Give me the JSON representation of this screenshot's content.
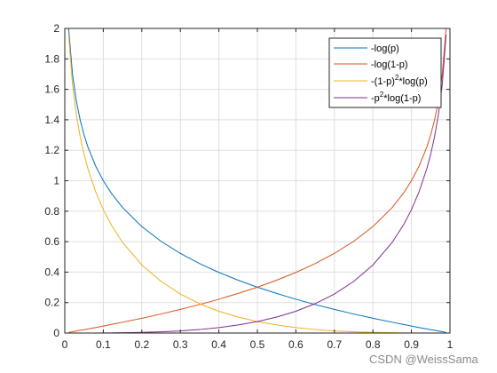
{
  "chart_data": {
    "type": "line",
    "xlim": [
      0,
      1
    ],
    "ylim": [
      0,
      2
    ],
    "xticks": [
      0,
      0.1,
      0.2,
      0.3,
      0.4,
      0.5,
      0.6,
      0.7,
      0.8,
      0.9,
      1
    ],
    "xtick_labels": [
      "0",
      "0.1",
      "0.2",
      "0.3",
      "0.4",
      "0.5",
      "0.6",
      "0.7",
      "0.8",
      "0.9",
      "1"
    ],
    "yticks": [
      0,
      0.2,
      0.4,
      0.6,
      0.8,
      1,
      1.2,
      1.4,
      1.6,
      1.8,
      2
    ],
    "ytick_labels": [
      "0",
      "0.2",
      "0.4",
      "0.6",
      "0.8",
      "1",
      "1.2",
      "1.4",
      "1.6",
      "1.8",
      "2"
    ],
    "grid": true,
    "legend_position": "top-right",
    "x": [
      0.01,
      0.02,
      0.03,
      0.04,
      0.05,
      0.06,
      0.08,
      0.1,
      0.12,
      0.15,
      0.2,
      0.25,
      0.3,
      0.35,
      0.4,
      0.45,
      0.5,
      0.55,
      0.6,
      0.65,
      0.7,
      0.75,
      0.8,
      0.85,
      0.88,
      0.9,
      0.92,
      0.94,
      0.95,
      0.96,
      0.97,
      0.98,
      0.99
    ],
    "series": [
      {
        "name": "-log(p)",
        "color": "#0072bd",
        "values": [
          2.0,
          1.699,
          1.523,
          1.398,
          1.301,
          1.222,
          1.097,
          1.0,
          0.921,
          0.824,
          0.699,
          0.602,
          0.523,
          0.456,
          0.398,
          0.347,
          0.301,
          0.26,
          0.222,
          0.187,
          0.155,
          0.125,
          0.097,
          0.071,
          0.056,
          0.046,
          0.036,
          0.027,
          0.022,
          0.018,
          0.013,
          0.009,
          0.004
        ]
      },
      {
        "name": "-log(1-p)",
        "color": "#d95319",
        "values": [
          0.004,
          0.009,
          0.013,
          0.018,
          0.022,
          0.027,
          0.036,
          0.046,
          0.056,
          0.071,
          0.097,
          0.125,
          0.155,
          0.187,
          0.222,
          0.26,
          0.301,
          0.347,
          0.398,
          0.456,
          0.523,
          0.602,
          0.699,
          0.824,
          0.921,
          1.0,
          1.097,
          1.222,
          1.301,
          1.398,
          1.523,
          1.699,
          2.0
        ]
      },
      {
        "name": "-(1-p)^2*log(p)",
        "color": "#edb120",
        "values": [
          1.96,
          1.632,
          1.433,
          1.289,
          1.174,
          1.08,
          0.929,
          0.81,
          0.713,
          0.595,
          0.447,
          0.339,
          0.256,
          0.193,
          0.143,
          0.105,
          0.075,
          0.053,
          0.036,
          0.023,
          0.014,
          0.008,
          0.004,
          0.002,
          0.001,
          0.0005,
          0.0002,
          0.0001,
          0.0001,
          0.0,
          0.0,
          0.0,
          0.0
        ]
      },
      {
        "name": "-p^2*log(1-p)",
        "color": "#7e2f8e",
        "values": [
          0.0,
          0.0,
          0.0,
          0.0,
          0.0001,
          0.0001,
          0.0002,
          0.0005,
          0.001,
          0.002,
          0.004,
          0.008,
          0.014,
          0.023,
          0.036,
          0.053,
          0.075,
          0.105,
          0.143,
          0.193,
          0.256,
          0.339,
          0.447,
          0.595,
          0.713,
          0.81,
          0.929,
          1.08,
          1.174,
          1.289,
          1.433,
          1.632,
          1.96
        ]
      }
    ]
  },
  "legend": {
    "entries": [
      {
        "base": "-log(p)",
        "sup": "",
        "tail": ""
      },
      {
        "base": "-log(1-p)",
        "sup": "",
        "tail": ""
      },
      {
        "base": "-(1-p)",
        "sup": "2",
        "tail": "*log(p)"
      },
      {
        "base": "-p",
        "sup": "2",
        "tail": "*log(1-p)"
      }
    ]
  },
  "watermark": "CSDN @WeissSama"
}
